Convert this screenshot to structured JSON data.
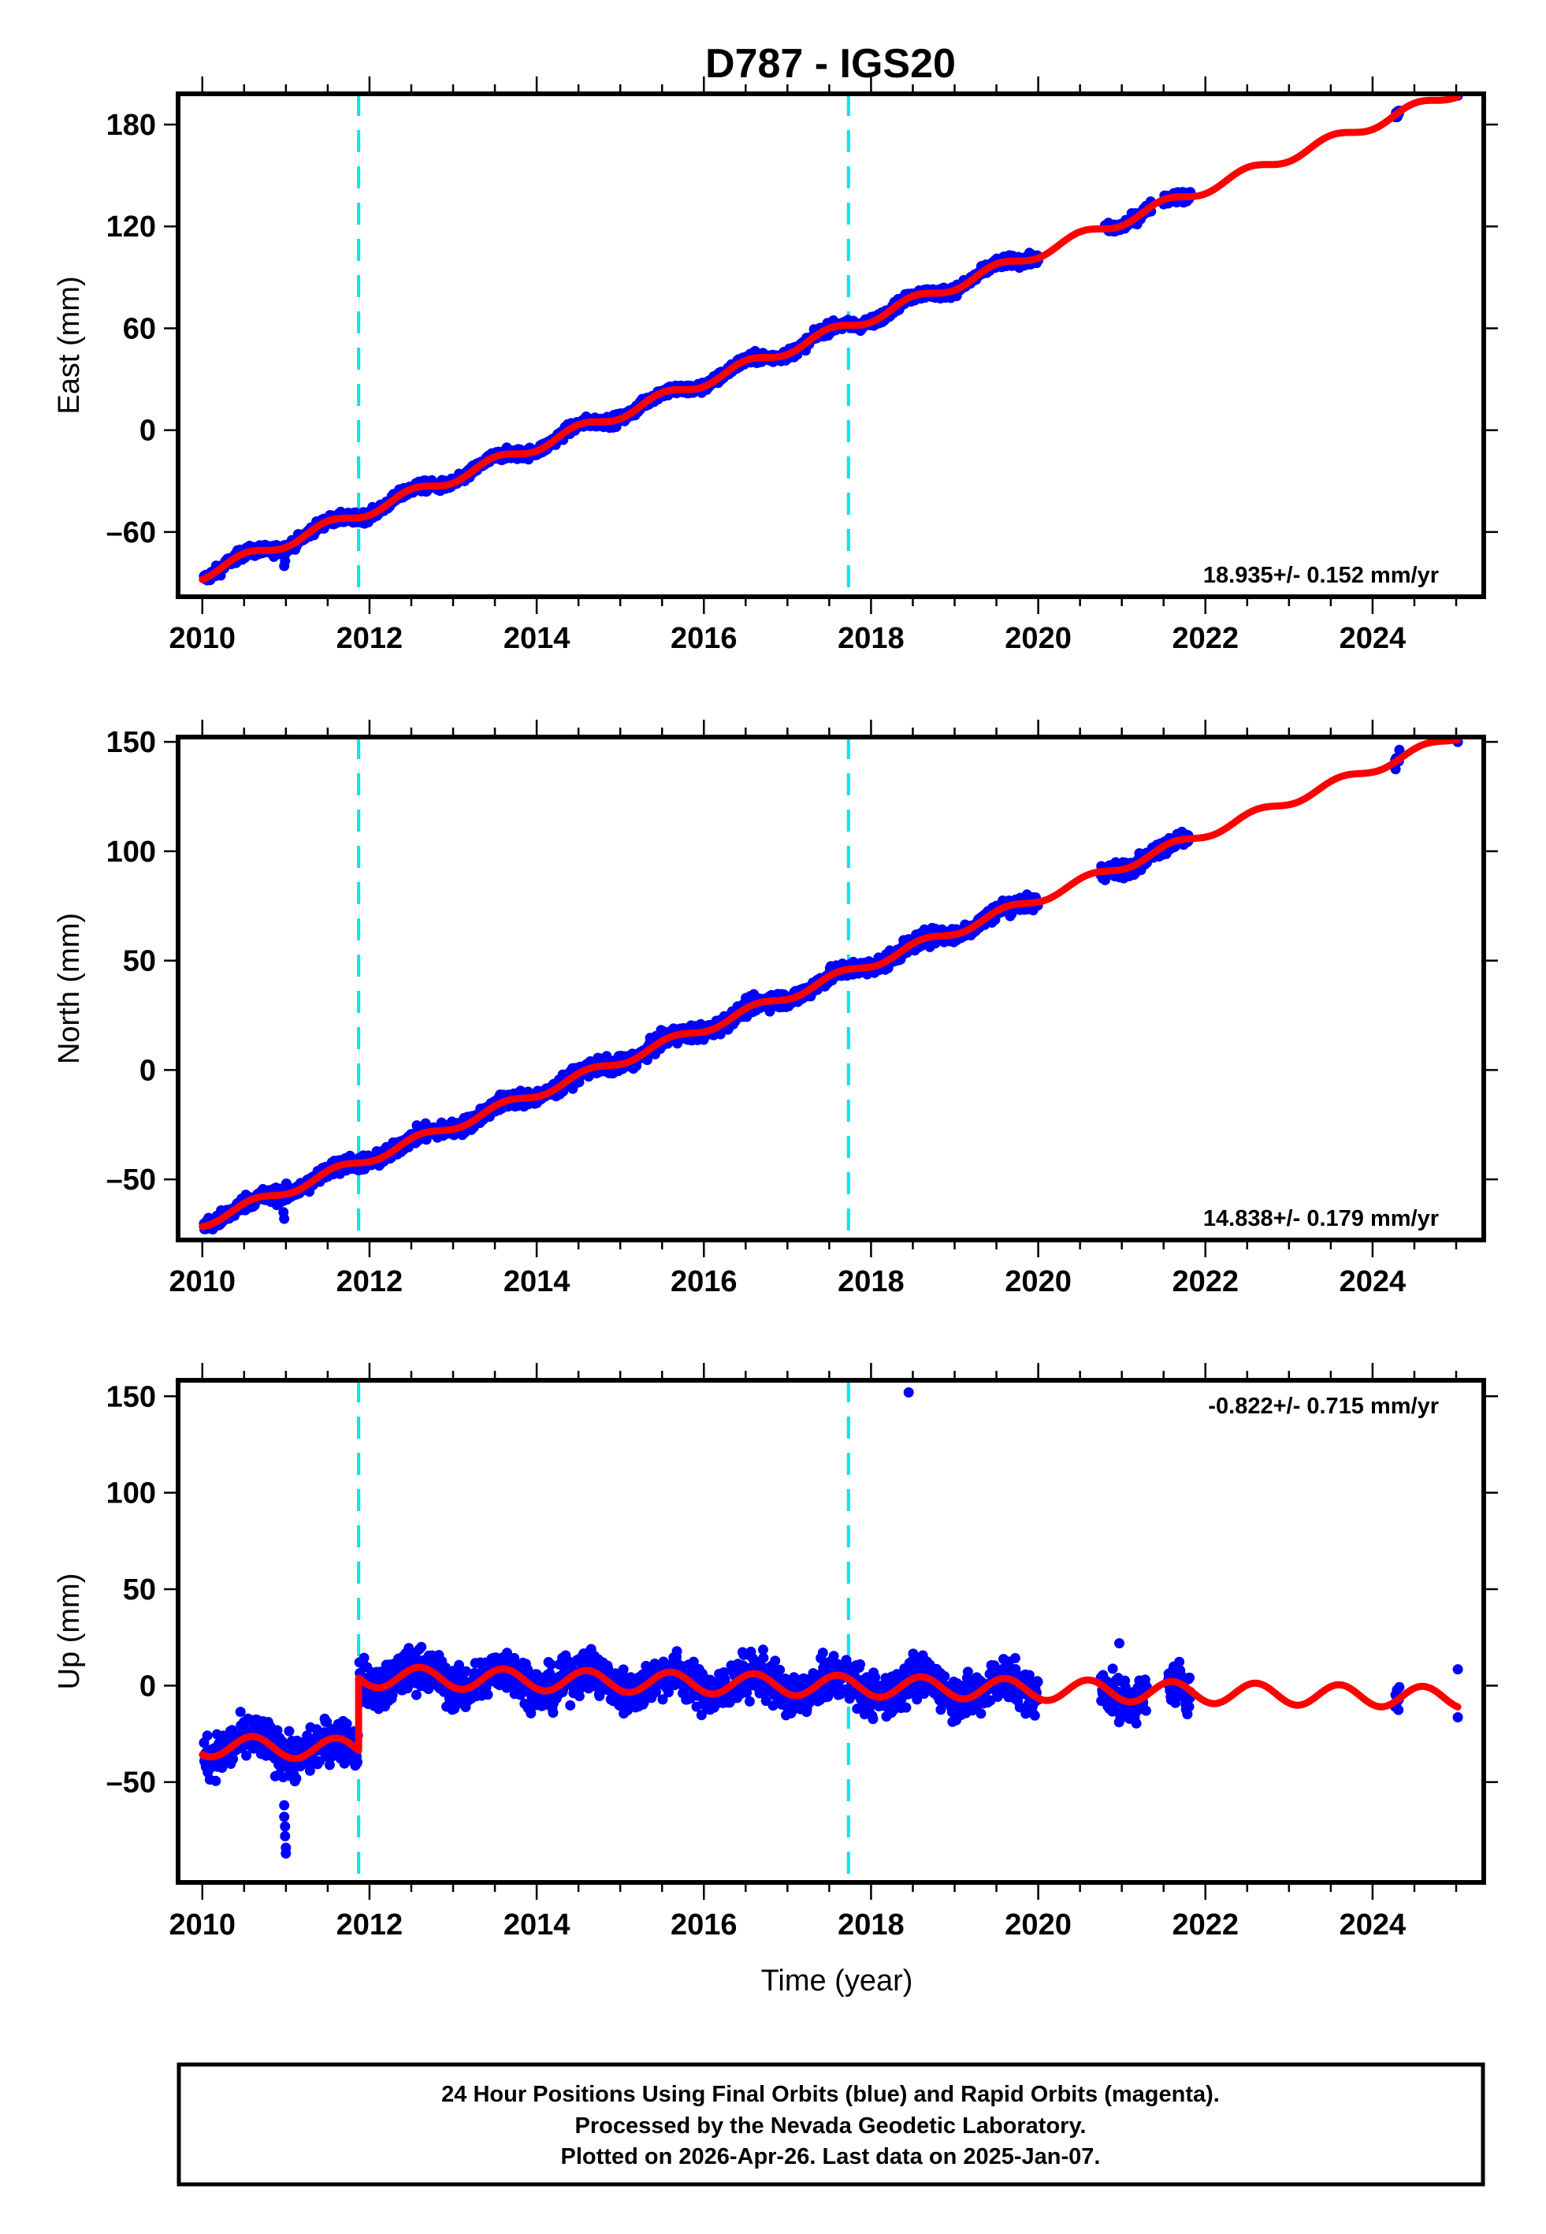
{
  "chart_data": {
    "type": "scatter",
    "title": "D787 - IGS20",
    "xlabel": "Time (year)",
    "xlim": [
      2009.71,
      2025.33
    ],
    "x_ticks": [
      2010,
      2012,
      2014,
      2016,
      2018,
      2020,
      2022,
      2024
    ],
    "x_minor_step": 0.5,
    "grid": false,
    "colors": {
      "observations": "#0000ff",
      "model": "#ff0000",
      "offset_lines": "#00e5ee",
      "frame": "#000000"
    },
    "offset_epochs": [
      2011.87,
      2017.73
    ],
    "panels": [
      {
        "name": "east",
        "ylabel": "East (mm)",
        "ylim": [
          -98.1,
          198.1
        ],
        "y_ticks": [
          -60,
          0,
          60,
          120,
          180
        ],
        "rate_text": "18.935+/- 0.152 mm/yr",
        "rate_position": "bottom-right",
        "model": {
          "ref_epoch": 2010.0,
          "offset": -85,
          "rate": 18.935,
          "annual_amplitude": 3.0,
          "annual_phase": 0.25,
          "jumps": []
        },
        "noise_mm": 1.6,
        "obs_ranges": [
          [
            2010.02,
            2020.0
          ],
          [
            2020.8,
            2021.35
          ],
          [
            2021.5,
            2021.82
          ],
          [
            2024.27,
            2024.32
          ],
          [
            2025.02,
            2025.02
          ]
        ],
        "outliers": [
          [
            2010.98,
            -80
          ],
          [
            2010.99,
            -77
          ]
        ]
      },
      {
        "name": "north",
        "ylabel": "North (mm)",
        "ylim": [
          -77.7,
          152.2
        ],
        "y_ticks": [
          -50,
          0,
          50,
          100,
          150
        ],
        "rate_text": "14.838+/- 0.179 mm/yr",
        "rate_position": "bottom-right",
        "model": {
          "ref_epoch": 2010.0,
          "offset": -70,
          "rate": 14.838,
          "annual_amplitude": 2.0,
          "annual_phase": 0.35,
          "jumps": []
        },
        "noise_mm": 1.8,
        "obs_ranges": [
          [
            2010.02,
            2020.0
          ],
          [
            2020.75,
            2021.3
          ],
          [
            2021.35,
            2021.8
          ],
          [
            2024.27,
            2024.32
          ],
          [
            2025.02,
            2025.02
          ]
        ],
        "outliers": [
          [
            2010.98,
            -68
          ],
          [
            2010.97,
            -65
          ]
        ]
      },
      {
        "name": "up",
        "ylabel": "Up (mm)",
        "ylim": [
          -102,
          158.3
        ],
        "y_ticks": [
          -50,
          0,
          50,
          100,
          150
        ],
        "rate_text": "-0.822+/- 0.715 mm/yr",
        "rate_position": "top-right",
        "model": {
          "ref_epoch": 2012.0,
          "offset": 4.5,
          "rate": -0.822,
          "annual_amplitude": 5.5,
          "annual_phase": 0.35,
          "jumps": [
            [
              2011.87,
              37.5
            ]
          ]
        },
        "noise_mm": 5.5,
        "obs_ranges": [
          [
            2010.02,
            2011.86
          ],
          [
            2011.88,
            2020.0
          ],
          [
            2020.75,
            2021.3
          ],
          [
            2021.55,
            2021.82
          ],
          [
            2024.27,
            2024.32
          ],
          [
            2025.02,
            2025.02
          ]
        ],
        "outliers": [
          [
            2010.98,
            -62
          ],
          [
            2010.98,
            -68
          ],
          [
            2010.99,
            -73
          ],
          [
            2010.99,
            -78
          ],
          [
            2011.0,
            -84
          ],
          [
            2011.0,
            -87
          ],
          [
            2018.45,
            152
          ],
          [
            2020.97,
            22
          ],
          [
            2025.02,
            8.5
          ]
        ]
      }
    ],
    "footer": {
      "lines": [
        "24 Hour Positions Using Final Orbits (blue) and Rapid Orbits (magenta).",
        "Processed by the Nevada Geodetic Laboratory.",
        "Plotted on 2026-Apr-26. Last data on 2025-Jan-07."
      ]
    }
  }
}
